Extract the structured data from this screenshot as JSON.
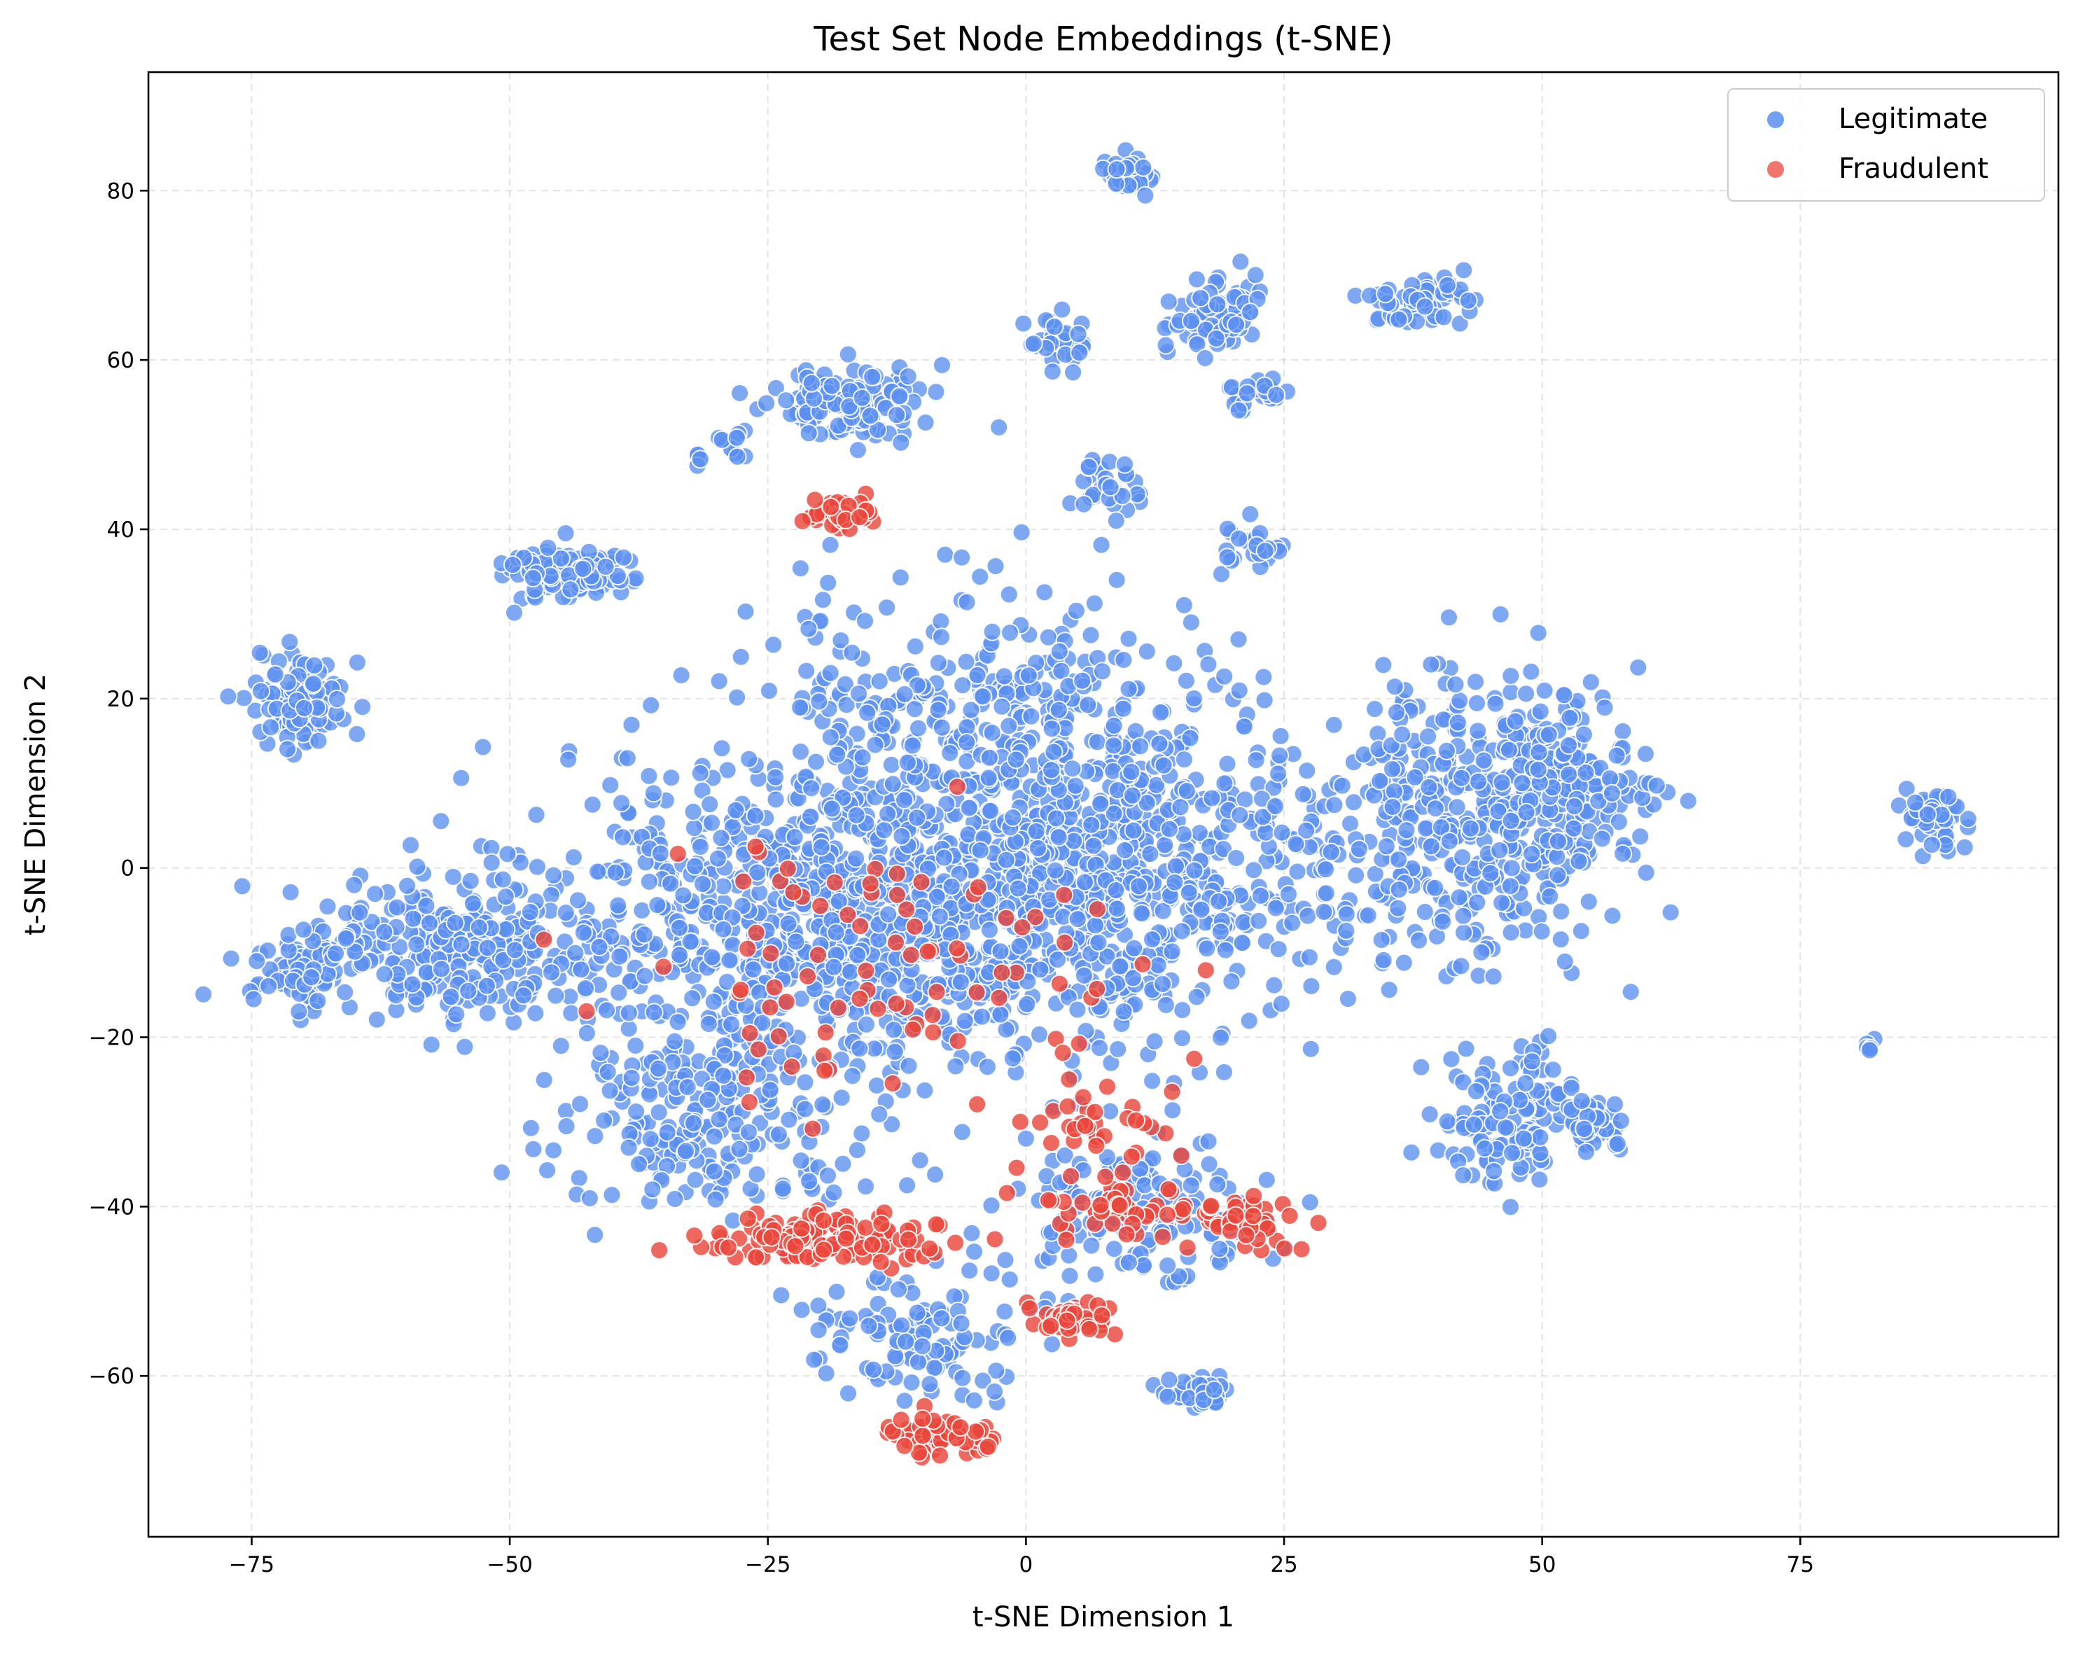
{
  "chart_data": {
    "type": "scatter",
    "title": "Test Set Node Embeddings (t-SNE)",
    "xlabel": "t-SNE Dimension 1",
    "ylabel": "t-SNE Dimension 2",
    "xlim": [
      -85,
      100
    ],
    "ylim": [
      -79,
      94
    ],
    "xticks": [
      -75,
      -50,
      -25,
      0,
      25,
      50,
      75
    ],
    "yticks": [
      -60,
      -40,
      -20,
      0,
      20,
      40,
      60,
      80
    ],
    "xtick_labels": [
      "−75",
      "−50",
      "−25",
      "0",
      "25",
      "50",
      "75"
    ],
    "ytick_labels": [
      "−60",
      "−40",
      "−20",
      "0",
      "20",
      "40",
      "60",
      "80"
    ],
    "grid": true,
    "legend_position": "top-right",
    "series": [
      {
        "name": "Legitimate",
        "color": "#5b8ff0",
        "clusters": [
          {
            "center": [
              -18,
              -5
            ],
            "spread": [
              26,
              18
            ],
            "n": 950
          },
          {
            "center": [
              8,
              0
            ],
            "spread": [
              20,
              17
            ],
            "n": 700
          },
          {
            "center": [
              -55,
              -10
            ],
            "spread": [
              14,
              9
            ],
            "n": 260
          },
          {
            "center": [
              42,
              5
            ],
            "spread": [
              14,
              16
            ],
            "n": 380
          },
          {
            "center": [
              52,
              10
            ],
            "spread": [
              7,
              9
            ],
            "n": 160
          },
          {
            "center": [
              -70,
              20
            ],
            "spread": [
              4,
              5
            ],
            "n": 110
          },
          {
            "center": [
              -70,
              -12
            ],
            "spread": [
              4,
              4
            ],
            "n": 80
          },
          {
            "center": [
              -45,
              35
            ],
            "spread": [
              5,
              3
            ],
            "n": 120
          },
          {
            "center": [
              -17,
              55
            ],
            "spread": [
              7,
              4
            ],
            "n": 120
          },
          {
            "center": [
              10,
              82
            ],
            "spread": [
              2,
              2
            ],
            "n": 45
          },
          {
            "center": [
              18,
              65
            ],
            "spread": [
              4,
              4
            ],
            "n": 75
          },
          {
            "center": [
              38,
              67
            ],
            "spread": [
              4,
              3
            ],
            "n": 60
          },
          {
            "center": [
              3,
              62
            ],
            "spread": [
              3,
              3
            ],
            "n": 30
          },
          {
            "center": [
              22,
              56
            ],
            "spread": [
              3,
              2
            ],
            "n": 25
          },
          {
            "center": [
              8,
              45
            ],
            "spread": [
              4,
              3
            ],
            "n": 30
          },
          {
            "center": [
              -30,
              50
            ],
            "spread": [
              3,
              2
            ],
            "n": 18
          },
          {
            "center": [
              22,
              38
            ],
            "spread": [
              3,
              3
            ],
            "n": 22
          },
          {
            "center": [
              88,
              6
            ],
            "spread": [
              2.5,
              3
            ],
            "n": 45
          },
          {
            "center": [
              82,
              -21
            ],
            "spread": [
              1,
              1
            ],
            "n": 8
          },
          {
            "center": [
              47,
              -30
            ],
            "spread": [
              6,
              7
            ],
            "n": 120
          },
          {
            "center": [
              55,
              -30
            ],
            "spread": [
              3,
              3
            ],
            "n": 40
          },
          {
            "center": [
              17,
              -62
            ],
            "spread": [
              3,
              2
            ],
            "n": 40
          },
          {
            "center": [
              -10,
              -55
            ],
            "spread": [
              10,
              6
            ],
            "n": 110
          },
          {
            "center": [
              10,
              -40
            ],
            "spread": [
              12,
              8
            ],
            "n": 150
          },
          {
            "center": [
              -30,
              -30
            ],
            "spread": [
              14,
              9
            ],
            "n": 200
          },
          {
            "center": [
              -5,
              20
            ],
            "spread": [
              20,
              12
            ],
            "n": 250
          }
        ]
      },
      {
        "name": "Fraudulent",
        "color": "#e9473c",
        "clusters": [
          {
            "center": [
              -18,
              42
            ],
            "spread": [
              3,
              1.5
            ],
            "n": 50
          },
          {
            "center": [
              -20,
              -44
            ],
            "spread": [
              10,
              2.5
            ],
            "n": 130
          },
          {
            "center": [
              -8,
              -67
            ],
            "spread": [
              5,
              2
            ],
            "n": 60
          },
          {
            "center": [
              4,
              -53
            ],
            "spread": [
              4,
              2
            ],
            "n": 40
          },
          {
            "center": [
              10,
              -40
            ],
            "spread": [
              8,
              3
            ],
            "n": 50
          },
          {
            "center": [
              22,
              -42
            ],
            "spread": [
              5,
              3
            ],
            "n": 40
          },
          {
            "center": [
              8,
              -30
            ],
            "spread": [
              6,
              4
            ],
            "n": 30
          },
          {
            "center": [
              -12,
              -15
            ],
            "spread": [
              22,
              18
            ],
            "n": 90
          }
        ]
      }
    ]
  }
}
